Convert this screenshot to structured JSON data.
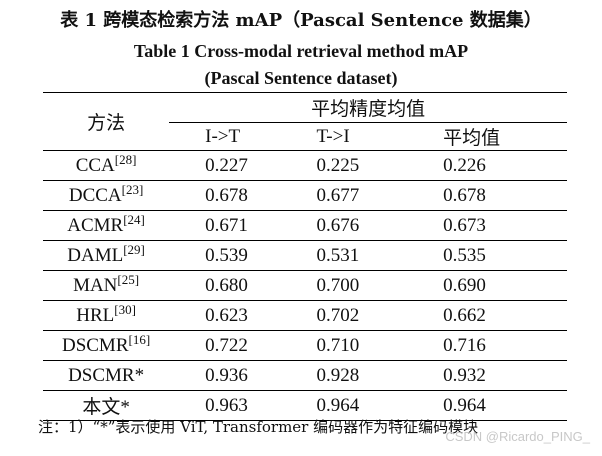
{
  "title_cn": "表 1  跨模态检索方法 mAP（Pascal  Sentence 数据集）",
  "title_en_line1": "Table 1 Cross-modal retrieval method mAP",
  "title_en_line2": "(Pascal Sentence dataset)",
  "table": {
    "method_header": "方法",
    "group_header": "平均精度均值",
    "columns": [
      "I->T",
      "T->I",
      "平均值"
    ],
    "rows": [
      {
        "method": "CCA",
        "ref": "[28]",
        "values": [
          "0.227",
          "0.225",
          "0.226"
        ]
      },
      {
        "method": "DCCA",
        "ref": "[23]",
        "values": [
          "0.678",
          "0.677",
          "0.678"
        ]
      },
      {
        "method": "ACMR",
        "ref": "[24]",
        "values": [
          "0.671",
          "0.676",
          "0.673"
        ]
      },
      {
        "method": "DAML",
        "ref": "[29]",
        "values": [
          "0.539",
          "0.531",
          "0.535"
        ]
      },
      {
        "method": "MAN",
        "ref": "[25]",
        "values": [
          "0.680",
          "0.700",
          "0.690"
        ]
      },
      {
        "method": "HRL",
        "ref": "[30]",
        "values": [
          "0.623",
          "0.702",
          "0.662"
        ]
      },
      {
        "method": "DSCMR",
        "ref": "[16]",
        "values": [
          "0.722",
          "0.710",
          "0.716"
        ]
      },
      {
        "method": "DSCMR*",
        "ref": "",
        "values": [
          "0.936",
          "0.928",
          "0.932"
        ]
      },
      {
        "method": "本文*",
        "ref": "",
        "values": [
          "0.963",
          "0.964",
          "0.964"
        ]
      }
    ]
  },
  "note": "注：1）“*”表示使用 ViT, Transformer 编码器作为特征编码模块",
  "watermark": "CSDN @Ricardo_PING_"
}
